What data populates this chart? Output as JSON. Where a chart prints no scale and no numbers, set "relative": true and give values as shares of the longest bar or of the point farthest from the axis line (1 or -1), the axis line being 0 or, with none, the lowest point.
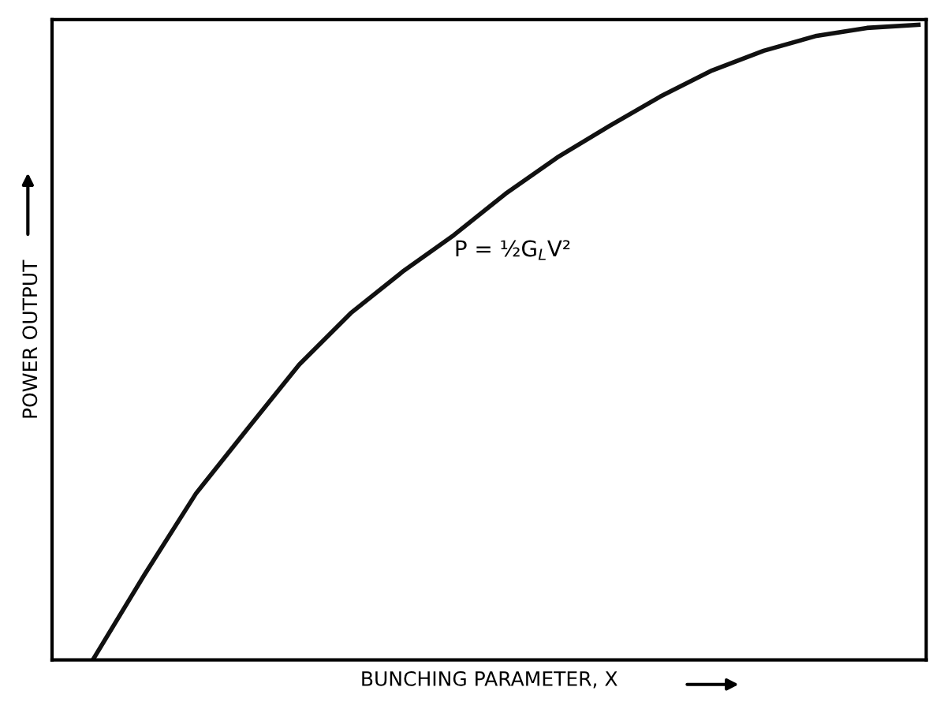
{
  "chart_data": {
    "type": "line",
    "relative": true,
    "xlabel": "BUNCHING PARAMETER, X",
    "ylabel": "POWER OUTPUT",
    "annotations": [
      "P = ½G$_{L}$V²"
    ],
    "categories": [
      null,
      null,
      null,
      null,
      null,
      null,
      null,
      null,
      null,
      null,
      null,
      null,
      null,
      null,
      null,
      null,
      null
    ],
    "series": [
      {
        "color": "#111111",
        "values": [
          0,
          0.134,
          0.262,
          0.364,
          0.465,
          0.546,
          0.611,
          0.669,
          0.734,
          0.791,
          0.84,
          0.887,
          0.928,
          0.959,
          0.982,
          0.995,
          1
        ]
      }
    ],
    "grid": false,
    "legend": false,
    "marker": "none",
    "line_style": "solid",
    "tick_labels": false
  }
}
